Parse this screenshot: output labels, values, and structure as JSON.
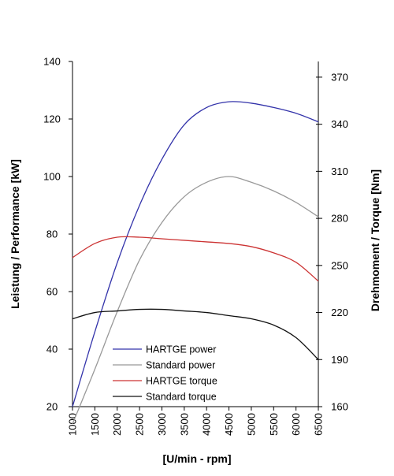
{
  "chart_data": {
    "type": "line",
    "xlabel": "[U/min - rpm]",
    "ylabel_left": "Leistung / Performance [kW]",
    "ylabel_right": "Drehmoment / Torque [Nm]",
    "xlim": [
      1000,
      6500
    ],
    "ylim_left": [
      20,
      140
    ],
    "ylim_right": [
      160,
      380
    ],
    "x_ticks": [
      1000,
      1500,
      2000,
      2500,
      3000,
      3500,
      4000,
      4500,
      5000,
      5500,
      6000,
      6500
    ],
    "y_left_ticks": [
      20,
      40,
      60,
      80,
      100,
      120,
      140
    ],
    "y_right_ticks": [
      160,
      190,
      220,
      250,
      280,
      310,
      340,
      370
    ],
    "grid": false,
    "legend_position": "bottom-center",
    "series": [
      {
        "name": "HARTGE power",
        "axis": "left",
        "color": "#3333aa",
        "x": [
          1000,
          1500,
          2000,
          2500,
          3000,
          3500,
          4000,
          4500,
          5000,
          5500,
          6000,
          6500
        ],
        "y": [
          20,
          46,
          70,
          90,
          106,
          118,
          124,
          126,
          125.5,
          124,
          122,
          119
        ]
      },
      {
        "name": "Standard power",
        "axis": "left",
        "color": "#999999",
        "x": [
          1000,
          1500,
          2000,
          2500,
          3000,
          3500,
          4000,
          4500,
          5000,
          5500,
          6000,
          6500
        ],
        "y": [
          14,
          33,
          53,
          71,
          84,
          93,
          98,
          100,
          98,
          95,
          91,
          86
        ]
      },
      {
        "name": "HARTGE torque",
        "axis": "right",
        "color": "#cc3333",
        "x": [
          1000,
          1500,
          2000,
          2500,
          3000,
          3500,
          4000,
          4500,
          5000,
          5500,
          6000,
          6500
        ],
        "y": [
          255,
          264,
          268,
          268,
          267,
          266,
          265,
          264,
          262,
          258,
          252,
          240
        ]
      },
      {
        "name": "Standard torque",
        "axis": "right",
        "color": "#111111",
        "x": [
          1000,
          1500,
          2000,
          2500,
          3000,
          3500,
          4000,
          4500,
          5000,
          5500,
          6000,
          6500
        ],
        "y": [
          216,
          220,
          221,
          222,
          222,
          221,
          220,
          218,
          216,
          212,
          204,
          190
        ]
      }
    ]
  }
}
